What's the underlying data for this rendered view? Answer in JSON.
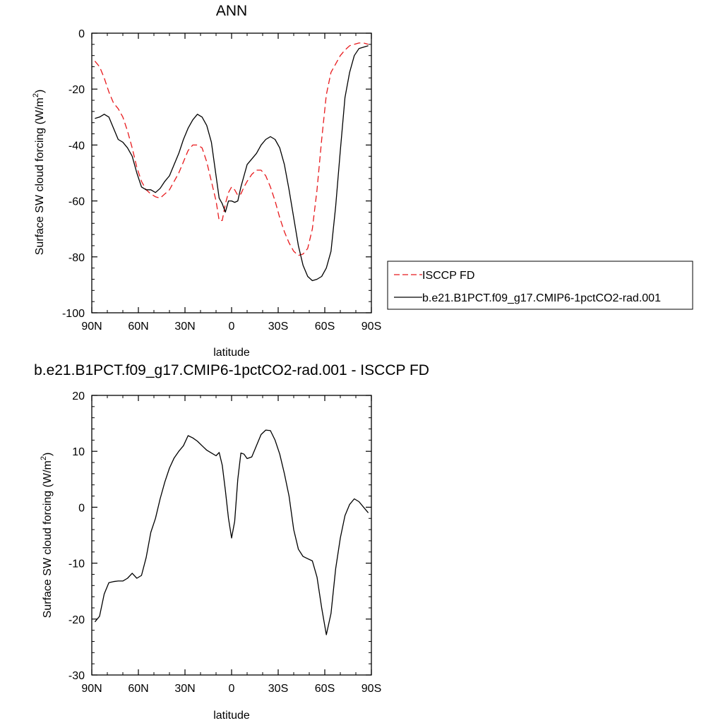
{
  "chart_data": [
    {
      "type": "line",
      "title": "ANN",
      "xlabel": "latitude",
      "ylabel": "Surface SW cloud forcing (W/m2)",
      "xlim": [
        -90,
        90
      ],
      "ylim": [
        -100,
        0
      ],
      "xticks": [
        -90,
        -60,
        -30,
        0,
        30,
        60,
        90
      ],
      "xticklabels": [
        "90N",
        "60N",
        "30N",
        "0",
        "30S",
        "60S",
        "90S"
      ],
      "yticks": [
        0,
        -20,
        -40,
        -60,
        -80,
        -100
      ],
      "yticklabels": [
        "0",
        "-20",
        "-40",
        "-60",
        "-80",
        "-100"
      ],
      "legend": "right",
      "series": [
        {
          "name": "ISCCP FD",
          "color": "#e8191c",
          "style": "dashed",
          "x": [
            -88,
            -85,
            -82,
            -79,
            -76,
            -73,
            -70,
            -67,
            -64,
            -61,
            -58,
            -55,
            -52,
            -49,
            -46,
            -43,
            -40,
            -37,
            -34,
            -31,
            -28,
            -25,
            -22,
            -19,
            -16,
            -13,
            -10,
            -8,
            -6,
            -4,
            -2,
            0,
            2,
            4,
            6,
            8,
            10,
            13,
            16,
            19,
            22,
            25,
            28,
            31,
            34,
            37,
            40,
            43,
            46,
            49,
            52,
            55,
            58,
            61,
            64,
            67,
            70,
            73,
            76,
            79,
            82,
            85,
            88
          ],
          "values": [
            -10,
            -12,
            -16,
            -21,
            -25,
            -27,
            -30,
            -35,
            -41,
            -48,
            -53,
            -56,
            -57.5,
            -58.5,
            -59,
            -57.5,
            -56,
            -53,
            -50,
            -46,
            -42,
            -40,
            -40,
            -41,
            -46,
            -53,
            -60,
            -67,
            -67,
            -61,
            -57,
            -55,
            -56,
            -58,
            -57.5,
            -55,
            -53,
            -50.5,
            -49,
            -49,
            -51,
            -55,
            -60,
            -66,
            -71,
            -75,
            -78,
            -79.5,
            -79,
            -77,
            -70,
            -56,
            -38,
            -22,
            -14,
            -11,
            -8,
            -6,
            -4.5,
            -4,
            -3.5,
            -3.5,
            -4
          ]
        },
        {
          "name": "b.e21.B1PCT.f09_g17.CMIP6-1pctCO2-rad.001",
          "color": "#000000",
          "style": "solid",
          "x": [
            -88,
            -85,
            -82,
            -79,
            -76,
            -73,
            -70,
            -67,
            -64,
            -61,
            -58,
            -55,
            -52,
            -49,
            -46,
            -43,
            -40,
            -37,
            -34,
            -31,
            -28,
            -25,
            -22,
            -19,
            -16,
            -13,
            -10,
            -8,
            -6,
            -4,
            -2,
            0,
            2,
            4,
            6,
            8,
            10,
            13,
            16,
            19,
            22,
            25,
            28,
            31,
            34,
            37,
            40,
            43,
            46,
            49,
            52,
            55,
            58,
            61,
            64,
            67,
            70,
            73,
            76,
            79,
            82,
            85,
            88
          ],
          "values": [
            -30.5,
            -30,
            -29,
            -30,
            -34,
            -38,
            -39,
            -41,
            -44,
            -50,
            -55,
            -56,
            -56,
            -57,
            -55.5,
            -53,
            -51,
            -47,
            -43,
            -38,
            -34,
            -31,
            -29,
            -30,
            -33,
            -39,
            -51,
            -59,
            -61,
            -64,
            -60,
            -60,
            -60.5,
            -60,
            -55,
            -51,
            -47,
            -45,
            -43,
            -40,
            -38,
            -37,
            -38,
            -41,
            -47,
            -56,
            -66,
            -76,
            -83,
            -87,
            -88.5,
            -88,
            -87,
            -84,
            -78,
            -62,
            -42,
            -23,
            -14,
            -8,
            -5.5,
            -5,
            -4.5
          ]
        }
      ]
    },
    {
      "type": "line",
      "title": "b.e21.B1PCT.f09_g17.CMIP6-1pctCO2-rad.001 - ISCCP FD",
      "xlabel": "latitude",
      "ylabel": "Surface SW cloud forcing (W/m2)",
      "xlim": [
        -90,
        90
      ],
      "ylim": [
        -30,
        20
      ],
      "xticks": [
        -90,
        -60,
        -30,
        0,
        30,
        60,
        90
      ],
      "xticklabels": [
        "90N",
        "60N",
        "30N",
        "0",
        "30S",
        "60S",
        "90S"
      ],
      "yticks": [
        20,
        10,
        0,
        -10,
        -20,
        -30
      ],
      "yticklabels": [
        "20",
        "10",
        "0",
        "-10",
        "-20",
        "-30"
      ],
      "series": [
        {
          "color": "#000000",
          "style": "solid",
          "x": [
            -88,
            -85,
            -82,
            -79,
            -76,
            -73,
            -70,
            -67,
            -64,
            -61,
            -58,
            -55,
            -52,
            -49,
            -46,
            -43,
            -40,
            -37,
            -34,
            -31,
            -28,
            -25,
            -22,
            -19,
            -16,
            -13,
            -10,
            -8,
            -6,
            -4,
            -2,
            0,
            2,
            4,
            6,
            8,
            10,
            13,
            16,
            19,
            22,
            25,
            28,
            31,
            34,
            37,
            40,
            43,
            46,
            49,
            52,
            55,
            58,
            61,
            64,
            67,
            70,
            73,
            76,
            79,
            82,
            85,
            88
          ],
          "values": [
            -20.5,
            -19.5,
            -15.5,
            -13.5,
            -13.3,
            -13.2,
            -13.2,
            -12.7,
            -11.8,
            -12.7,
            -12.2,
            -9,
            -4.5,
            -2,
            1.5,
            4.5,
            7,
            8.8,
            10,
            11,
            12.8,
            12.4,
            11.8,
            11,
            10.2,
            9.7,
            9.2,
            9.8,
            7.5,
            3,
            -2,
            -5.5,
            -2.5,
            5,
            9.7,
            9.5,
            8.7,
            9.0,
            11,
            13,
            13.8,
            13.7,
            12,
            9.5,
            6,
            2,
            -4,
            -7.5,
            -8.8,
            -9.2,
            -9.6,
            -12.5,
            -18,
            -22.8,
            -19,
            -11,
            -5.5,
            -1.5,
            0.5,
            1.5,
            1,
            0,
            -1
          ]
        }
      ]
    }
  ]
}
